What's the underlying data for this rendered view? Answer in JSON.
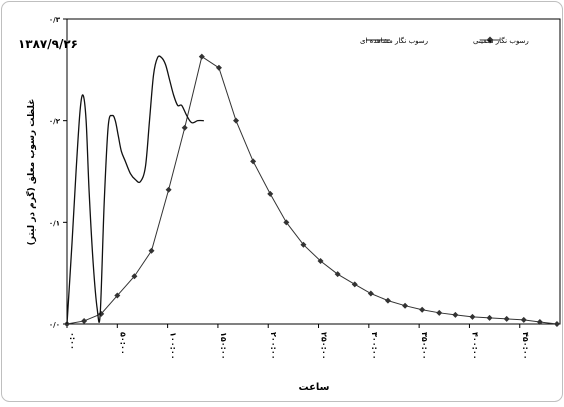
{
  "chart_data": {
    "type": "line",
    "title": "",
    "date_label": "۱۳۸۷/۹/۲۶",
    "xlabel": "ساعت",
    "ylabel": "غلظت رسوب معلق (گرم در لیتر)",
    "ylim": [
      0,
      0.3
    ],
    "yticks": [
      0,
      0.1,
      0.2,
      0.3
    ],
    "ytick_labels": [
      "۰/۰",
      "۰/۱",
      "۰/۲",
      "۰/۳"
    ],
    "xlim": [
      0,
      490
    ],
    "xticks": [
      0,
      50,
      100,
      150,
      200,
      250,
      300,
      350,
      400,
      450
    ],
    "xtick_labels": [
      "۰:۰۰",
      "۵۰:۰۰",
      "۱۰۰:۰۰",
      "۱۵۰:۰۰",
      "۲۰۰:۰۰",
      "۲۵۰:۰۰",
      "۳۰۰:۰۰",
      "۳۵۰:۰۰",
      "۴۰۰:۰۰",
      "۴۵۰:۰۰"
    ],
    "grid": false,
    "legend_position": "top-right",
    "series": [
      {
        "name": "رسوب نگار تخمینی",
        "color": "#333333",
        "marker": "diamond",
        "x": [
          0,
          17,
          34,
          50,
          67,
          84,
          101,
          117,
          134,
          151,
          168,
          185,
          202,
          218,
          235,
          252,
          269,
          286,
          302,
          319,
          336,
          353,
          370,
          386,
          403,
          420,
          437,
          454,
          470,
          487
        ],
        "y": [
          0,
          0.003,
          0.01,
          0.028,
          0.047,
          0.072,
          0.132,
          0.193,
          0.263,
          0.252,
          0.2,
          0.16,
          0.128,
          0.1,
          0.078,
          0.062,
          0.049,
          0.039,
          0.03,
          0.023,
          0.018,
          0.014,
          0.011,
          0.009,
          0.007,
          0.006,
          0.005,
          0.004,
          0.002,
          0
        ]
      },
      {
        "name": "رسوب نگار مشاهده ای",
        "color": "#111111",
        "marker": "none",
        "x": [
          0,
          5,
          9,
          13,
          16,
          19,
          22,
          26,
          30,
          33,
          37,
          41,
          45,
          48,
          51,
          54,
          58,
          63,
          68,
          73,
          78,
          82,
          86,
          90,
          94,
          98,
          102,
          106,
          110,
          114,
          119,
          124,
          130,
          136
        ],
        "y": [
          0,
          0.08,
          0.15,
          0.21,
          0.225,
          0.2,
          0.13,
          0.06,
          0.015,
          0.01,
          0.12,
          0.195,
          0.205,
          0.2,
          0.185,
          0.17,
          0.16,
          0.148,
          0.142,
          0.14,
          0.155,
          0.2,
          0.245,
          0.262,
          0.262,
          0.255,
          0.24,
          0.225,
          0.215,
          0.215,
          0.205,
          0.198,
          0.2,
          0.2
        ]
      }
    ]
  }
}
